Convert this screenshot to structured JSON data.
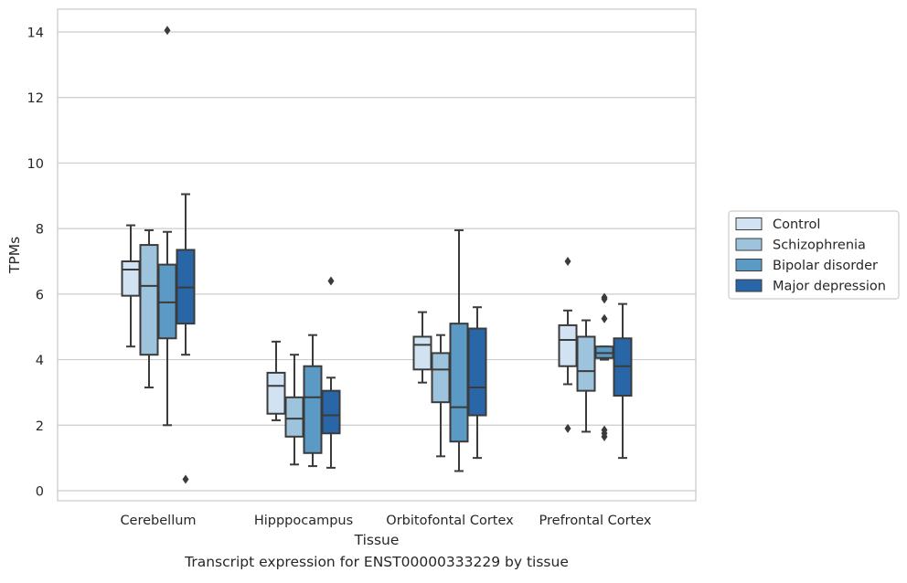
{
  "caption": "Transcript expression for ENST00000333229 by tissue",
  "chart_data": {
    "type": "boxplot",
    "xlabel": "Tissue",
    "ylabel": "TPMs",
    "ylim": [
      -0.3,
      14.7
    ],
    "yticks": [
      0,
      2,
      4,
      6,
      8,
      10,
      12,
      14
    ],
    "grid": "horizontal",
    "legend_position": "right",
    "categories": [
      "Cerebellum",
      "Hipppocampus",
      "Orbitofontal Cortex",
      "Prefrontal Cortex"
    ],
    "series": [
      {
        "name": "Control",
        "color": "#d1e2f2",
        "boxes": [
          {
            "whislo": 4.4,
            "q1": 5.95,
            "med": 6.75,
            "q3": 7.0,
            "whishi": 8.1,
            "fliers": []
          },
          {
            "whislo": 2.15,
            "q1": 2.35,
            "med": 3.2,
            "q3": 3.6,
            "whishi": 4.55,
            "fliers": []
          },
          {
            "whislo": 3.3,
            "q1": 3.7,
            "med": 4.45,
            "q3": 4.7,
            "whishi": 5.45,
            "fliers": []
          },
          {
            "whislo": 3.25,
            "q1": 3.8,
            "med": 4.6,
            "q3": 5.05,
            "whishi": 5.5,
            "fliers": [
              7.0,
              1.9
            ]
          }
        ]
      },
      {
        "name": "Schizophrenia",
        "color": "#9dc3dd",
        "boxes": [
          {
            "whislo": 3.15,
            "q1": 4.15,
            "med": 6.25,
            "q3": 7.5,
            "whishi": 7.95,
            "fliers": []
          },
          {
            "whislo": 0.8,
            "q1": 1.65,
            "med": 2.2,
            "q3": 2.85,
            "whishi": 4.15,
            "fliers": []
          },
          {
            "whislo": 1.05,
            "q1": 2.7,
            "med": 3.7,
            "q3": 4.2,
            "whishi": 4.75,
            "fliers": []
          },
          {
            "whislo": 1.8,
            "q1": 3.05,
            "med": 3.65,
            "q3": 4.7,
            "whishi": 5.2,
            "fliers": []
          }
        ]
      },
      {
        "name": "Bipolar disorder",
        "color": "#5c9ac6",
        "boxes": [
          {
            "whislo": 2.0,
            "q1": 4.65,
            "med": 5.75,
            "q3": 6.9,
            "whishi": 7.9,
            "fliers": [
              14.05
            ]
          },
          {
            "whislo": 0.75,
            "q1": 1.15,
            "med": 2.85,
            "q3": 3.8,
            "whishi": 4.75,
            "fliers": []
          },
          {
            "whislo": 0.6,
            "q1": 1.5,
            "med": 2.55,
            "q3": 5.1,
            "whishi": 7.95,
            "fliers": []
          },
          {
            "whislo": 4.0,
            "q1": 4.05,
            "med": 4.2,
            "q3": 4.4,
            "whishi": 4.4,
            "fliers": [
              5.9,
              5.85,
              5.25,
              1.85,
              1.75,
              1.65
            ]
          }
        ]
      },
      {
        "name": "Major depression",
        "color": "#2866a8",
        "boxes": [
          {
            "whislo": 4.15,
            "q1": 5.1,
            "med": 6.2,
            "q3": 7.35,
            "whishi": 9.05,
            "fliers": [
              0.35
            ]
          },
          {
            "whislo": 0.7,
            "q1": 1.75,
            "med": 2.3,
            "q3": 3.05,
            "whishi": 3.45,
            "fliers": [
              6.4
            ]
          },
          {
            "whislo": 1.0,
            "q1": 2.3,
            "med": 3.15,
            "q3": 4.95,
            "whishi": 5.6,
            "fliers": []
          },
          {
            "whislo": 1.0,
            "q1": 2.9,
            "med": 3.8,
            "q3": 4.65,
            "whishi": 5.7,
            "fliers": []
          }
        ]
      }
    ]
  }
}
